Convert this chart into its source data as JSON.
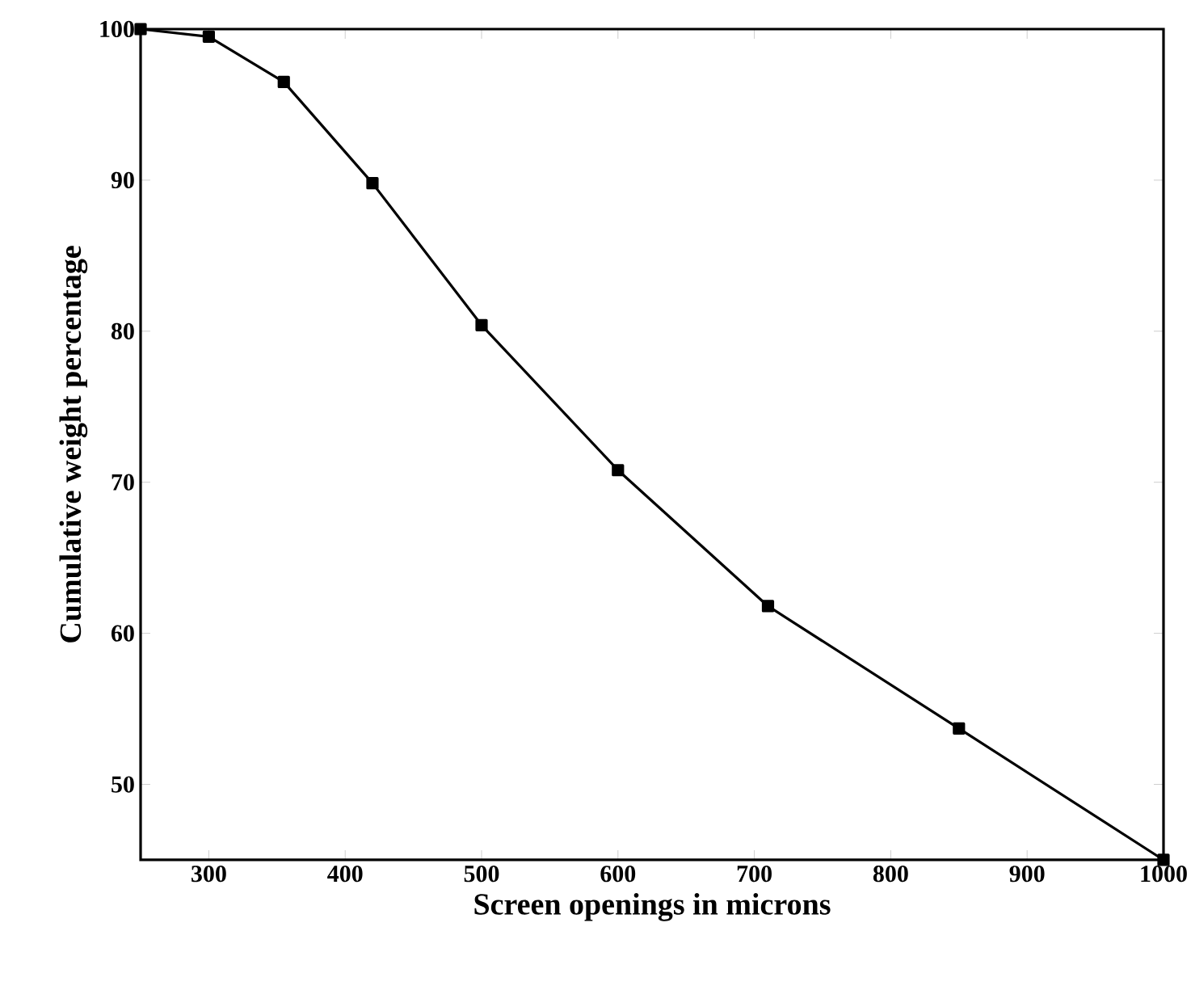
{
  "chart_data": {
    "type": "line",
    "xlabel": "Screen openings in microns",
    "ylabel": "Cumulative weight percentage",
    "x": [
      250,
      300,
      355,
      420,
      500,
      600,
      710,
      850,
      1000
    ],
    "series": [
      {
        "color": "#000000",
        "values": [
          100,
          99.5,
          96.5,
          89.8,
          80.4,
          70.8,
          61.8,
          53.7,
          45
        ]
      }
    ],
    "xlim": [
      250,
      1000
    ],
    "ylim": [
      45,
      100
    ],
    "xticks": [
      300,
      400,
      500,
      600,
      700,
      800,
      900,
      1000
    ],
    "yticks": [
      50,
      60,
      70,
      80,
      90,
      100
    ],
    "marker": "square",
    "line_style": "solid",
    "grid": false
  }
}
